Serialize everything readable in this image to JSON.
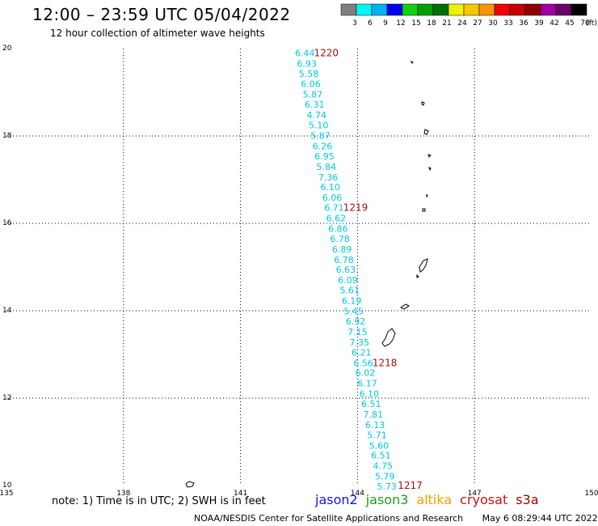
{
  "title": "12:00 – 23:59 UTC 05/04/2022",
  "subtitle": "12 hour collection of altimeter wave heights",
  "note": "note: 1) Time is in UTC; 2) SWH is in feet",
  "footer": {
    "source": "NOAA/NESDIS Center for Satellite Applications and Research",
    "timestamp": "May  6 08:29:44 UTC 2022"
  },
  "satellites": [
    {
      "name": "jason2",
      "color": "#1414e6"
    },
    {
      "name": "jason3",
      "color": "#1a9e1a"
    },
    {
      "name": "altika",
      "color": "#f5a000"
    },
    {
      "name": "cryosat",
      "color": "#d01010"
    },
    {
      "name": "s3a",
      "color": "#a00000"
    }
  ],
  "colorbar": {
    "colors": [
      "#7f7f7f",
      "#00f5f5",
      "#00b2f0",
      "#0000f0",
      "#10d010",
      "#00a000",
      "#007000",
      "#f0f000",
      "#f5c800",
      "#f59600",
      "#f00000",
      "#c80000",
      "#900000",
      "#a000a0",
      "#6a006a",
      "#000000"
    ],
    "labels": [
      "3",
      "6",
      "9",
      "12",
      "15",
      "18",
      "21",
      "24",
      "27",
      "30",
      "33",
      "36",
      "39",
      "42",
      "45",
      "70"
    ],
    "unit_label": "(ft)"
  },
  "chart_data": {
    "type": "scatter",
    "title": "12:00 – 23:59 UTC 05/04/2022",
    "subtitle": "12 hour collection of altimeter wave heights",
    "xlim": [
      135,
      150
    ],
    "ylim": [
      10,
      20
    ],
    "x_ticks": [
      135,
      138,
      141,
      144,
      147,
      150
    ],
    "y_ticks": [
      10,
      12,
      14,
      16,
      18,
      20
    ],
    "grid": true,
    "series": [
      {
        "name": "cryosat",
        "color": "#00c8e6",
        "points": [
          {
            "lon": 142.65,
            "lat": 19.9,
            "swh": "6.44"
          },
          {
            "lon": 142.7,
            "lat": 19.66,
            "swh": "6.93"
          },
          {
            "lon": 142.75,
            "lat": 19.43,
            "swh": "5.58"
          },
          {
            "lon": 142.8,
            "lat": 19.19,
            "swh": "6.06"
          },
          {
            "lon": 142.85,
            "lat": 18.95,
            "swh": "5.87"
          },
          {
            "lon": 142.9,
            "lat": 18.72,
            "swh": "6.31"
          },
          {
            "lon": 142.95,
            "lat": 18.48,
            "swh": "4.74"
          },
          {
            "lon": 143.0,
            "lat": 18.25,
            "swh": "5.10"
          },
          {
            "lon": 143.05,
            "lat": 18.01,
            "swh": "5.87"
          },
          {
            "lon": 143.1,
            "lat": 17.77,
            "swh": "6.26"
          },
          {
            "lon": 143.15,
            "lat": 17.54,
            "swh": "6.95"
          },
          {
            "lon": 143.2,
            "lat": 17.3,
            "swh": "5.84"
          },
          {
            "lon": 143.25,
            "lat": 17.06,
            "swh": "7.36"
          },
          {
            "lon": 143.3,
            "lat": 16.83,
            "swh": "6.10"
          },
          {
            "lon": 143.35,
            "lat": 16.59,
            "swh": "6.06"
          },
          {
            "lon": 143.4,
            "lat": 16.36,
            "swh": "6.71"
          },
          {
            "lon": 143.45,
            "lat": 16.12,
            "swh": "6.62"
          },
          {
            "lon": 143.5,
            "lat": 15.88,
            "swh": "6.86"
          },
          {
            "lon": 143.55,
            "lat": 15.65,
            "swh": "6.78"
          },
          {
            "lon": 143.6,
            "lat": 15.41,
            "swh": "6.89"
          },
          {
            "lon": 143.65,
            "lat": 15.17,
            "swh": "6.78"
          },
          {
            "lon": 143.7,
            "lat": 14.94,
            "swh": "6.63"
          },
          {
            "lon": 143.75,
            "lat": 14.7,
            "swh": "6.09"
          },
          {
            "lon": 143.8,
            "lat": 14.47,
            "swh": "5.61"
          },
          {
            "lon": 143.85,
            "lat": 14.23,
            "swh": "6.19"
          },
          {
            "lon": 143.9,
            "lat": 13.99,
            "swh": "5.45"
          },
          {
            "lon": 143.95,
            "lat": 13.76,
            "swh": "6.92"
          },
          {
            "lon": 144.0,
            "lat": 13.52,
            "swh": "7.15"
          },
          {
            "lon": 144.05,
            "lat": 13.28,
            "swh": "7.35"
          },
          {
            "lon": 144.1,
            "lat": 13.05,
            "swh": "6.21"
          },
          {
            "lon": 144.15,
            "lat": 12.81,
            "swh": "6.56"
          },
          {
            "lon": 144.2,
            "lat": 12.58,
            "swh": "6.02"
          },
          {
            "lon": 144.25,
            "lat": 12.34,
            "swh": "6.17"
          },
          {
            "lon": 144.3,
            "lat": 12.1,
            "swh": "6.10"
          },
          {
            "lon": 144.35,
            "lat": 11.87,
            "swh": "6.51"
          },
          {
            "lon": 144.4,
            "lat": 11.63,
            "swh": "7.81"
          },
          {
            "lon": 144.45,
            "lat": 11.39,
            "swh": "6.13"
          },
          {
            "lon": 144.5,
            "lat": 11.16,
            "swh": "5.71"
          },
          {
            "lon": 144.55,
            "lat": 10.92,
            "swh": "5.60"
          },
          {
            "lon": 144.6,
            "lat": 10.69,
            "swh": "6.51"
          },
          {
            "lon": 144.65,
            "lat": 10.45,
            "swh": "4.75"
          },
          {
            "lon": 144.7,
            "lat": 10.21,
            "swh": "5.79"
          },
          {
            "lon": 144.75,
            "lat": 9.98,
            "swh": "5.73"
          }
        ]
      }
    ],
    "time_labels": [
      {
        "text": "1220",
        "lon": 143.2,
        "lat": 19.9
      },
      {
        "text": "1219",
        "lon": 143.95,
        "lat": 16.36
      },
      {
        "text": "1218",
        "lon": 144.7,
        "lat": 12.81
      },
      {
        "text": "1217",
        "lon": 145.35,
        "lat": 10.0
      }
    ],
    "time_label_color": "#a01010"
  }
}
